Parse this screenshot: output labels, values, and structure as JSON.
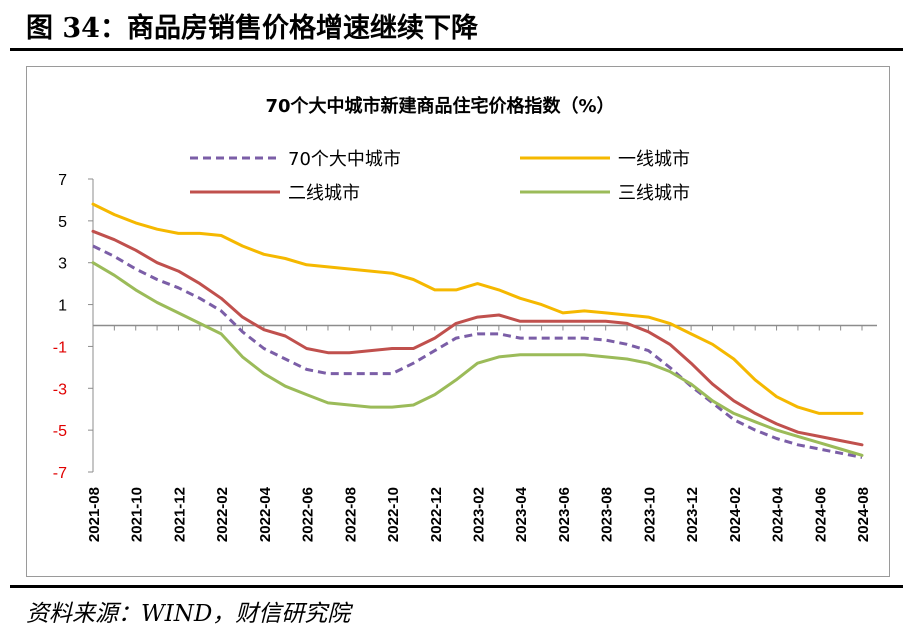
{
  "figure": {
    "title": "图 34：商品房销售价格增速继续下降",
    "source": "资料来源：WIND，财信研究院"
  },
  "chart_data": {
    "type": "line",
    "title": "70个大中城市新建商品住宅价格指数（%）",
    "xlabel": "",
    "ylabel": "",
    "ylim": [
      -7,
      7
    ],
    "yticks": [
      7,
      5,
      3,
      1,
      -1,
      -3,
      -5,
      -7
    ],
    "negative_tick_color": "#e00000",
    "grid": false,
    "legend_position": "top",
    "x": [
      "2021-08",
      "2021-09",
      "2021-10",
      "2021-11",
      "2021-12",
      "2022-01",
      "2022-02",
      "2022-03",
      "2022-04",
      "2022-05",
      "2022-06",
      "2022-07",
      "2022-08",
      "2022-09",
      "2022-10",
      "2022-11",
      "2022-12",
      "2023-01",
      "2023-02",
      "2023-03",
      "2023-04",
      "2023-05",
      "2023-06",
      "2023-07",
      "2023-08",
      "2023-09",
      "2023-10",
      "2023-11",
      "2023-12",
      "2024-01",
      "2024-02",
      "2024-03",
      "2024-04",
      "2024-05",
      "2024-06",
      "2024-07",
      "2024-08"
    ],
    "xtick_labels": [
      "2021-08",
      "2021-10",
      "2021-12",
      "2022-02",
      "2022-04",
      "2022-06",
      "2022-08",
      "2022-10",
      "2022-12",
      "2023-02",
      "2023-04",
      "2023-06",
      "2023-08",
      "2023-10",
      "2023-12",
      "2024-02",
      "2024-04",
      "2024-06",
      "2024-08"
    ],
    "series": [
      {
        "name": "70个大中城市",
        "color": "#7b5ea7",
        "dash": true,
        "values": [
          3.8,
          3.3,
          2.7,
          2.2,
          1.8,
          1.3,
          0.7,
          -0.3,
          -1.1,
          -1.6,
          -2.1,
          -2.3,
          -2.3,
          -2.3,
          -2.3,
          -1.8,
          -1.2,
          -0.6,
          -0.4,
          -0.4,
          -0.6,
          -0.6,
          -0.6,
          -0.6,
          -0.7,
          -0.9,
          -1.2,
          -2.0,
          -2.9,
          -3.7,
          -4.5,
          -5.0,
          -5.4,
          -5.7,
          -5.9,
          -6.1,
          -6.3
        ]
      },
      {
        "name": "一线城市",
        "color": "#f5b800",
        "dash": false,
        "values": [
          5.8,
          5.3,
          4.9,
          4.6,
          4.4,
          4.4,
          4.3,
          3.8,
          3.4,
          3.2,
          2.9,
          2.8,
          2.7,
          2.6,
          2.5,
          2.2,
          1.7,
          1.7,
          2.0,
          1.7,
          1.3,
          1.0,
          0.6,
          0.7,
          0.6,
          0.5,
          0.4,
          0.1,
          -0.4,
          -0.9,
          -1.6,
          -2.6,
          -3.4,
          -3.9,
          -4.2,
          -4.2,
          -4.2
        ]
      },
      {
        "name": "二线城市",
        "color": "#c0504d",
        "dash": false,
        "values": [
          4.5,
          4.1,
          3.6,
          3.0,
          2.6,
          2.0,
          1.3,
          0.4,
          -0.2,
          -0.5,
          -1.1,
          -1.3,
          -1.3,
          -1.2,
          -1.1,
          -1.1,
          -0.6,
          0.1,
          0.4,
          0.5,
          0.2,
          0.2,
          0.2,
          0.2,
          0.2,
          0.1,
          -0.3,
          -0.9,
          -1.8,
          -2.8,
          -3.6,
          -4.2,
          -4.7,
          -5.1,
          -5.3,
          -5.5,
          -5.7
        ]
      },
      {
        "name": "三线城市",
        "color": "#9bbb59",
        "dash": false,
        "values": [
          3.0,
          2.4,
          1.7,
          1.1,
          0.6,
          0.1,
          -0.4,
          -1.5,
          -2.3,
          -2.9,
          -3.3,
          -3.7,
          -3.8,
          -3.9,
          -3.9,
          -3.8,
          -3.3,
          -2.6,
          -1.8,
          -1.5,
          -1.4,
          -1.4,
          -1.4,
          -1.4,
          -1.5,
          -1.6,
          -1.8,
          -2.2,
          -2.8,
          -3.6,
          -4.2,
          -4.6,
          -5.0,
          -5.3,
          -5.6,
          -5.9,
          -6.2
        ]
      }
    ]
  }
}
